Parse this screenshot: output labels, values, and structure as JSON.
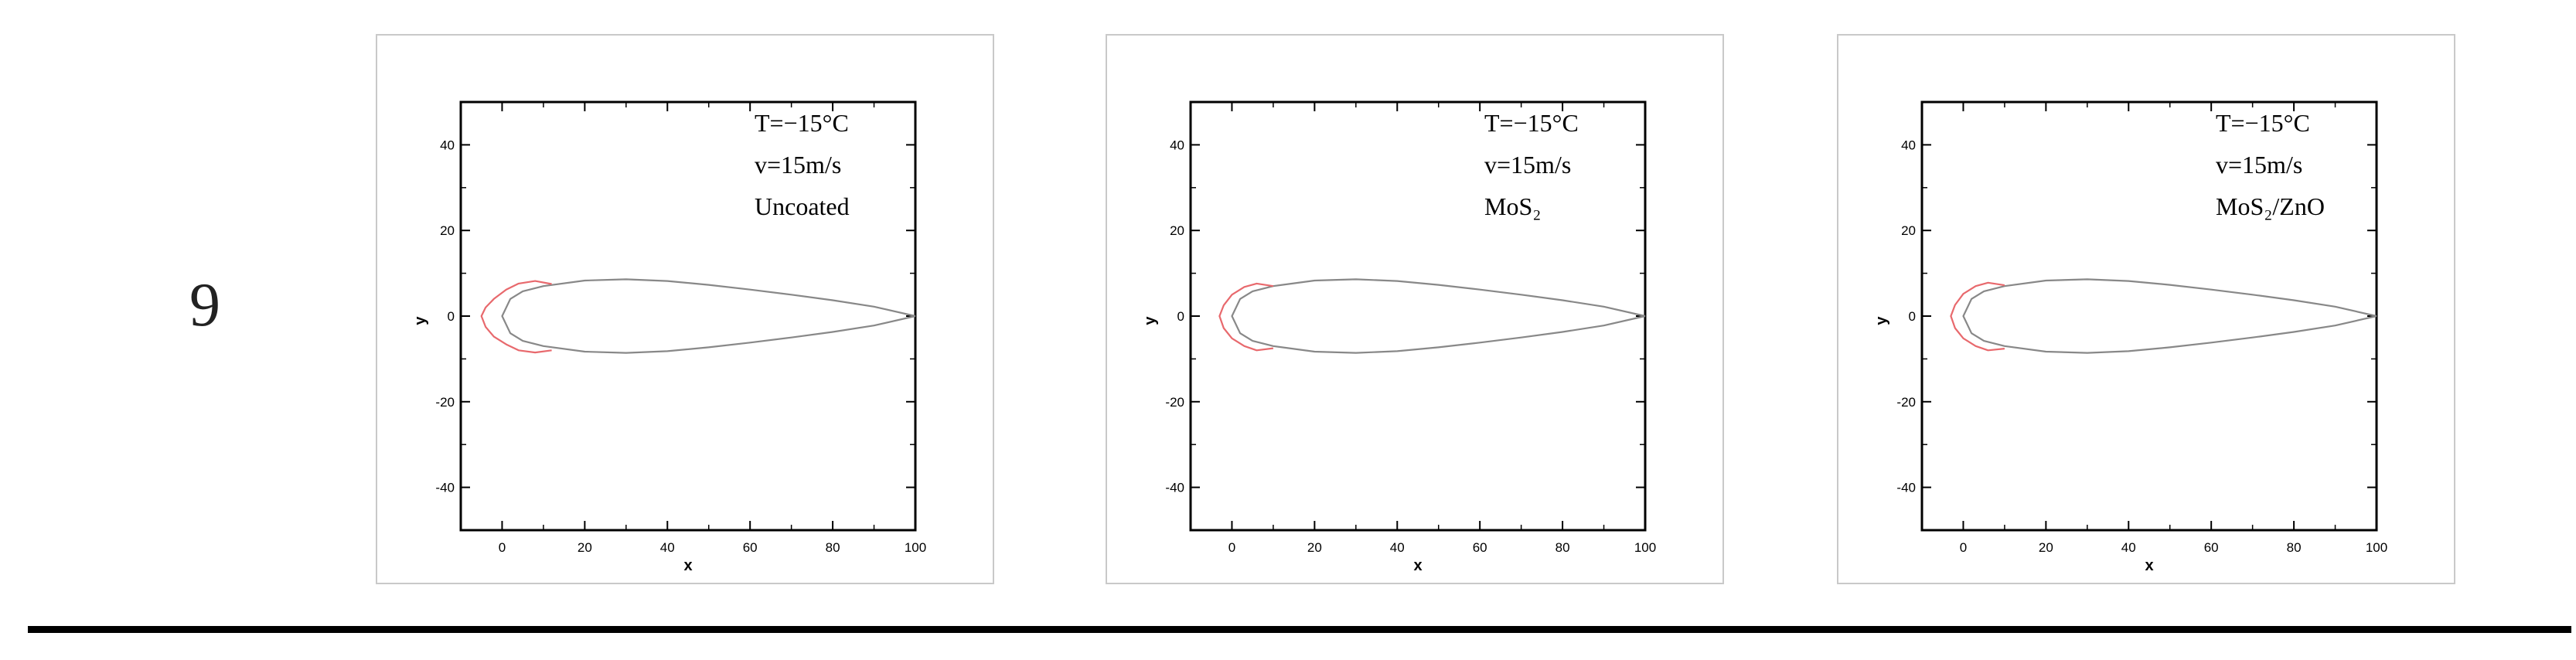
{
  "row_label": "9",
  "chart_data": [
    {
      "type": "line",
      "annotations": [
        "T=−15°C",
        "v=15m/s",
        "Uncoated"
      ],
      "xlabel": "x",
      "ylabel": "y",
      "xlim": [
        -10,
        100
      ],
      "ylim": [
        -50,
        50
      ],
      "xticks": [
        "0",
        "20",
        "40",
        "60",
        "80",
        "100"
      ],
      "yticks": [
        "40",
        "20",
        "0",
        "-20",
        "-40"
      ],
      "series": [
        {
          "color": "#888888",
          "x": [
            100,
            90,
            80,
            70,
            60,
            50,
            40,
            30,
            20,
            10,
            5,
            2,
            0,
            2,
            5,
            10,
            20,
            30,
            40,
            50,
            60,
            70,
            80,
            90,
            100
          ],
          "y": [
            0,
            2.2,
            3.7,
            5.0,
            6.2,
            7.3,
            8.2,
            8.6,
            8.3,
            7.0,
            5.8,
            4.0,
            0,
            -4.0,
            -5.8,
            -7.0,
            -8.3,
            -8.6,
            -8.2,
            -7.3,
            -6.2,
            -5.0,
            -3.7,
            -2.2,
            0
          ]
        },
        {
          "color": "#e8696d",
          "x": [
            12,
            8,
            4,
            1,
            -2,
            -4,
            -5,
            -4,
            -2,
            1,
            4,
            8,
            12
          ],
          "y": [
            7.5,
            8.2,
            7.6,
            6.2,
            4.0,
            2.0,
            0,
            -2.5,
            -4.8,
            -6.6,
            -8.0,
            -8.5,
            -8.0
          ]
        }
      ]
    },
    {
      "type": "line",
      "annotations": [
        "T=−15°C",
        "v=15m/s",
        "MoS₂"
      ],
      "xlabel": "x",
      "ylabel": "y",
      "xlim": [
        -10,
        100
      ],
      "ylim": [
        -50,
        50
      ],
      "xticks": [
        "0",
        "20",
        "40",
        "60",
        "80",
        "100"
      ],
      "yticks": [
        "40",
        "20",
        "0",
        "-20",
        "-40"
      ],
      "series": [
        {
          "color": "#888888",
          "x": [
            100,
            90,
            80,
            70,
            60,
            50,
            40,
            30,
            20,
            10,
            5,
            2,
            0,
            2,
            5,
            10,
            20,
            30,
            40,
            50,
            60,
            70,
            80,
            90,
            100
          ],
          "y": [
            0,
            2.2,
            3.7,
            5.0,
            6.2,
            7.3,
            8.2,
            8.6,
            8.3,
            7.0,
            5.8,
            4.0,
            0,
            -4.0,
            -5.8,
            -7.0,
            -8.3,
            -8.6,
            -8.2,
            -7.3,
            -6.2,
            -5.0,
            -3.7,
            -2.2,
            0
          ]
        },
        {
          "color": "#e8696d",
          "x": [
            10,
            6,
            3,
            0,
            -2,
            -3,
            -2,
            0,
            3,
            6,
            10
          ],
          "y": [
            7.0,
            7.6,
            6.8,
            5.0,
            2.5,
            0,
            -2.8,
            -5.2,
            -7.0,
            -8.0,
            -7.5
          ]
        }
      ]
    },
    {
      "type": "line",
      "annotations": [
        "T=−15°C",
        "v=15m/s",
        "MoS₂/ZnO"
      ],
      "xlabel": "x",
      "ylabel": "y",
      "xlim": [
        -10,
        100
      ],
      "ylim": [
        -50,
        50
      ],
      "xticks": [
        "0",
        "20",
        "40",
        "60",
        "80",
        "100"
      ],
      "yticks": [
        "40",
        "20",
        "0",
        "-20",
        "-40"
      ],
      "series": [
        {
          "color": "#888888",
          "x": [
            100,
            90,
            80,
            70,
            60,
            50,
            40,
            30,
            20,
            10,
            5,
            2,
            0,
            2,
            5,
            10,
            20,
            30,
            40,
            50,
            60,
            70,
            80,
            90,
            100
          ],
          "y": [
            0,
            2.2,
            3.7,
            5.0,
            6.2,
            7.3,
            8.2,
            8.6,
            8.3,
            7.0,
            5.8,
            4.0,
            0,
            -4.0,
            -5.8,
            -7.0,
            -8.3,
            -8.6,
            -8.2,
            -7.3,
            -6.2,
            -5.0,
            -3.7,
            -2.2,
            0
          ]
        },
        {
          "color": "#e8696d",
          "x": [
            10,
            6,
            3,
            0,
            -2,
            -3,
            -2,
            0,
            3,
            6,
            10
          ],
          "y": [
            7.2,
            7.8,
            7.0,
            5.2,
            2.6,
            0,
            -2.8,
            -5.2,
            -7.0,
            -8.0,
            -7.6
          ]
        }
      ]
    }
  ]
}
